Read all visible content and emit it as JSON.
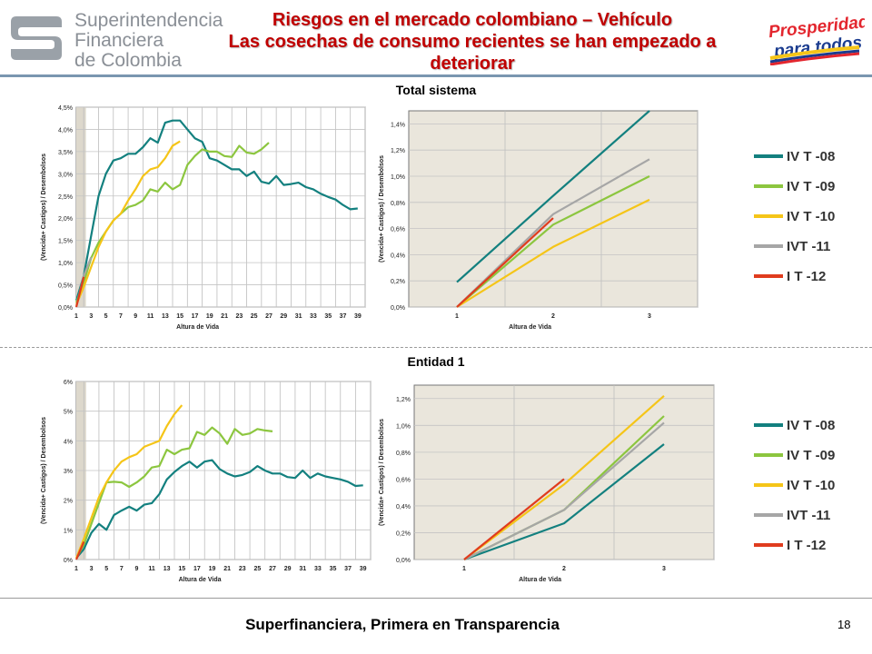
{
  "header": {
    "org_lines": [
      "Superintendencia",
      "Financiera",
      "de Colombia"
    ],
    "title_line1": "Riesgos en el mercado colombiano – Vehículo",
    "title_line2": "Las cosechas de consumo recientes se han empezado a deteriorar",
    "right_logo_line1": "Prosperidad",
    "right_logo_line2": "para todos"
  },
  "sections": {
    "top_title": "Total sistema",
    "bottom_title": "Entidad  1"
  },
  "footer": {
    "text": "Superfinanciera, Primera en Transparencia",
    "page_number": "18"
  },
  "colors": {
    "IV T -08": "#13807f",
    "IV T -09": "#8cc63f",
    "IV T -10": "#f5c518",
    "IVT -11": "#a6a6a6",
    "I T -12": "#e03c1e"
  },
  "legend_entries": [
    "IV T -08",
    "IV T -09",
    "IV T -10",
    "IVT -11",
    "I T -12"
  ],
  "chart_data": [
    {
      "id": "total-long",
      "type": "line",
      "xlabel": "Altura de Vida",
      "ylabel": "(Vencida+ Castigos) / Desembolsos",
      "xlim": [
        1,
        40
      ],
      "ylim": [
        0,
        4.5
      ],
      "xticks": [
        1,
        3,
        5,
        7,
        9,
        11,
        13,
        15,
        17,
        19,
        21,
        23,
        25,
        27,
        29,
        31,
        33,
        35,
        37,
        39
      ],
      "yticks": [
        0,
        0.5,
        1,
        1.5,
        2,
        2.5,
        3,
        3.5,
        4,
        4.5
      ],
      "yticklabels": [
        "0,0%",
        "0,5%",
        "1,0%",
        "1,5%",
        "2,0%",
        "2,5%",
        "3,0%",
        "3,5%",
        "4,0%",
        "4,5%"
      ],
      "series": [
        {
          "name": "IV T -08",
          "x": [
            1,
            2,
            3,
            4,
            5,
            6,
            7,
            8,
            9,
            10,
            11,
            12,
            13,
            14,
            15,
            16,
            17,
            18,
            19,
            20,
            21,
            22,
            23,
            24,
            25,
            26,
            27,
            28,
            29,
            30,
            31,
            32,
            33,
            34,
            35,
            36,
            37,
            38,
            39
          ],
          "values": [
            0.15,
            0.7,
            1.6,
            2.5,
            3.0,
            3.3,
            3.35,
            3.45,
            3.45,
            3.6,
            3.8,
            3.7,
            4.15,
            4.2,
            4.2,
            4.0,
            3.8,
            3.72,
            3.35,
            3.3,
            3.2,
            3.1,
            3.1,
            2.95,
            3.05,
            2.82,
            2.78,
            2.95,
            2.75,
            2.77,
            2.8,
            2.7,
            2.65,
            2.55,
            2.48,
            2.42,
            2.3,
            2.2,
            2.22
          ]
        },
        {
          "name": "IV T -09",
          "x": [
            1,
            2,
            3,
            4,
            5,
            6,
            7,
            8,
            9,
            10,
            11,
            12,
            13,
            14,
            15,
            16,
            17,
            18,
            19,
            20,
            21,
            22,
            23,
            24,
            25,
            26,
            27
          ],
          "values": [
            0.1,
            0.55,
            1.1,
            1.45,
            1.7,
            1.95,
            2.1,
            2.25,
            2.3,
            2.4,
            2.65,
            2.6,
            2.8,
            2.65,
            2.75,
            3.2,
            3.4,
            3.55,
            3.5,
            3.5,
            3.4,
            3.38,
            3.63,
            3.48,
            3.45,
            3.55,
            3.7
          ]
        },
        {
          "name": "IV T -10",
          "x": [
            1,
            2,
            3,
            4,
            5,
            6,
            7,
            8,
            9,
            10,
            11,
            12,
            13,
            14,
            15
          ],
          "values": [
            0.05,
            0.45,
            0.9,
            1.35,
            1.7,
            1.95,
            2.1,
            2.4,
            2.65,
            2.95,
            3.1,
            3.15,
            3.35,
            3.63,
            3.73
          ]
        },
        {
          "name": "IVT -11",
          "x": [
            1,
            2,
            3
          ],
          "values": [
            0.0,
            0.7,
            1.12
          ]
        },
        {
          "name": "I T -12",
          "x": [
            1,
            2
          ],
          "values": [
            0.0,
            0.68
          ]
        }
      ]
    },
    {
      "id": "total-short",
      "type": "line",
      "xlabel": "Altura de Vida",
      "ylabel": "(Vencida+ Castigos) / Desembolsos",
      "xlim": [
        0.5,
        3.5
      ],
      "ylim": [
        0,
        1.5
      ],
      "xticks": [
        1,
        2,
        3
      ],
      "yticks": [
        0,
        0.2,
        0.4,
        0.6,
        0.8,
        1.0,
        1.2,
        1.4
      ],
      "yticklabels": [
        "0,0%",
        "0,2%",
        "0,4%",
        "0,6%",
        "0,8%",
        "1,0%",
        "1,2%",
        "1,4%"
      ],
      "series": [
        {
          "name": "IV T -08",
          "x": [
            1,
            2,
            3
          ],
          "values": [
            0.19,
            0.85,
            1.5
          ]
        },
        {
          "name": "IV T -09",
          "x": [
            1,
            2,
            3
          ],
          "values": [
            0.0,
            0.63,
            1.0
          ]
        },
        {
          "name": "IV T -10",
          "x": [
            1,
            2,
            3
          ],
          "values": [
            0.0,
            0.46,
            0.82
          ]
        },
        {
          "name": "IVT -11",
          "x": [
            1,
            2,
            3
          ],
          "values": [
            0.0,
            0.71,
            1.13
          ]
        },
        {
          "name": "I T -12",
          "x": [
            1,
            2
          ],
          "values": [
            0.0,
            0.68
          ]
        }
      ]
    },
    {
      "id": "entidad-long",
      "type": "line",
      "xlabel": "Altura de Vida",
      "ylabel": "(Vencida+ Castigos) / Desembolsos",
      "xlim": [
        1,
        40
      ],
      "ylim": [
        0,
        6
      ],
      "xticks": [
        1,
        3,
        5,
        7,
        9,
        11,
        13,
        15,
        17,
        19,
        21,
        23,
        25,
        27,
        29,
        31,
        33,
        35,
        37,
        39
      ],
      "yticks": [
        0,
        1,
        2,
        3,
        4,
        5,
        6
      ],
      "yticklabels": [
        "0%",
        "1%",
        "2%",
        "3%",
        "4%",
        "5%",
        "6%"
      ],
      "series": [
        {
          "name": "IV T -08",
          "x": [
            1,
            2,
            3,
            4,
            5,
            6,
            7,
            8,
            9,
            10,
            11,
            12,
            13,
            14,
            15,
            16,
            17,
            18,
            19,
            20,
            21,
            22,
            23,
            24,
            25,
            26,
            27,
            28,
            29,
            30,
            31,
            32,
            33,
            34,
            35,
            36,
            37,
            38,
            39
          ],
          "values": [
            0.05,
            0.35,
            0.9,
            1.2,
            1.0,
            1.5,
            1.65,
            1.78,
            1.65,
            1.85,
            1.9,
            2.2,
            2.7,
            2.95,
            3.15,
            3.3,
            3.1,
            3.3,
            3.35,
            3.05,
            2.9,
            2.8,
            2.85,
            2.95,
            3.15,
            3.0,
            2.9,
            2.9,
            2.78,
            2.75,
            3.0,
            2.75,
            2.9,
            2.8,
            2.75,
            2.7,
            2.62,
            2.48,
            2.5
          ]
        },
        {
          "name": "IV T -09",
          "x": [
            1,
            2,
            3,
            4,
            5,
            6,
            7,
            8,
            9,
            10,
            11,
            12,
            13,
            14,
            15,
            16,
            17,
            18,
            19,
            20,
            21,
            22,
            23,
            24,
            25,
            26,
            27
          ],
          "values": [
            0.05,
            0.5,
            1.2,
            1.9,
            2.6,
            2.62,
            2.6,
            2.45,
            2.6,
            2.8,
            3.1,
            3.15,
            3.7,
            3.55,
            3.7,
            3.75,
            4.3,
            4.2,
            4.45,
            4.25,
            3.9,
            4.4,
            4.2,
            4.25,
            4.4,
            4.35,
            4.32
          ]
        },
        {
          "name": "IV T -10",
          "x": [
            1,
            2,
            3,
            4,
            5,
            6,
            7,
            8,
            9,
            10,
            11,
            12,
            13,
            14,
            15
          ],
          "values": [
            0.05,
            0.7,
            1.4,
            2.1,
            2.6,
            3.0,
            3.3,
            3.45,
            3.55,
            3.8,
            3.9,
            4.0,
            4.5,
            4.9,
            5.2
          ]
        },
        {
          "name": "I T -12",
          "x": [
            1,
            2
          ],
          "values": [
            0.0,
            0.6
          ]
        }
      ]
    },
    {
      "id": "entidad-short",
      "type": "line",
      "xlabel": "Altura de Vida",
      "ylabel": "(Vencida+ Castigos) / Desembolsos",
      "xlim": [
        0.5,
        3.5
      ],
      "ylim": [
        0,
        1.3
      ],
      "xticks": [
        1,
        2,
        3
      ],
      "yticks": [
        0,
        0.2,
        0.4,
        0.6,
        0.8,
        1.0,
        1.2
      ],
      "yticklabels": [
        "0,0%",
        "0,2%",
        "0,4%",
        "0,6%",
        "0,8%",
        "1,0%",
        "1,2%"
      ],
      "series": [
        {
          "name": "IV T -08",
          "x": [
            1,
            2,
            3
          ],
          "values": [
            0.0,
            0.27,
            0.86
          ]
        },
        {
          "name": "IV T -09",
          "x": [
            1,
            2,
            3
          ],
          "values": [
            0.0,
            0.37,
            1.07
          ]
        },
        {
          "name": "IV T -10",
          "x": [
            1,
            2,
            3
          ],
          "values": [
            0.0,
            0.56,
            1.22
          ]
        },
        {
          "name": "IVT -11",
          "x": [
            1,
            2,
            3
          ],
          "values": [
            0.0,
            0.37,
            1.02
          ]
        },
        {
          "name": "I T -12",
          "x": [
            1,
            2
          ],
          "values": [
            0.0,
            0.6
          ]
        }
      ]
    }
  ]
}
